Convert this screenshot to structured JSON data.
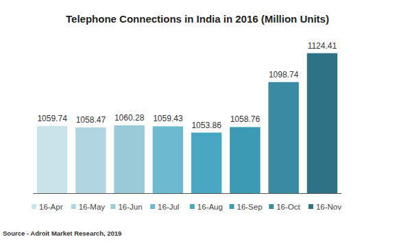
{
  "chart_data": {
    "type": "bar",
    "title": "Telephone Connections in India in 2016 (Million Units)",
    "categories": [
      "16-Apr",
      "16-May",
      "16-Jun",
      "16-Jul",
      "16-Aug",
      "16-Sep",
      "16-Oct",
      "16-Nov"
    ],
    "values": [
      1059.74,
      1058.47,
      1060.28,
      1059.43,
      1053.86,
      1058.76,
      1098.74,
      1124.41
    ],
    "colors": [
      "#c8e3ea",
      "#b0d6e1",
      "#98cad8",
      "#6dbad0",
      "#48a8c3",
      "#3b9bb4",
      "#3a8aa1",
      "#2e7286"
    ],
    "ylim": [
      1000,
      1140
    ],
    "data_labels": true,
    "tick_labels": false,
    "legend": "bottom",
    "source": "Source - Adroit Market Research, 2019"
  }
}
